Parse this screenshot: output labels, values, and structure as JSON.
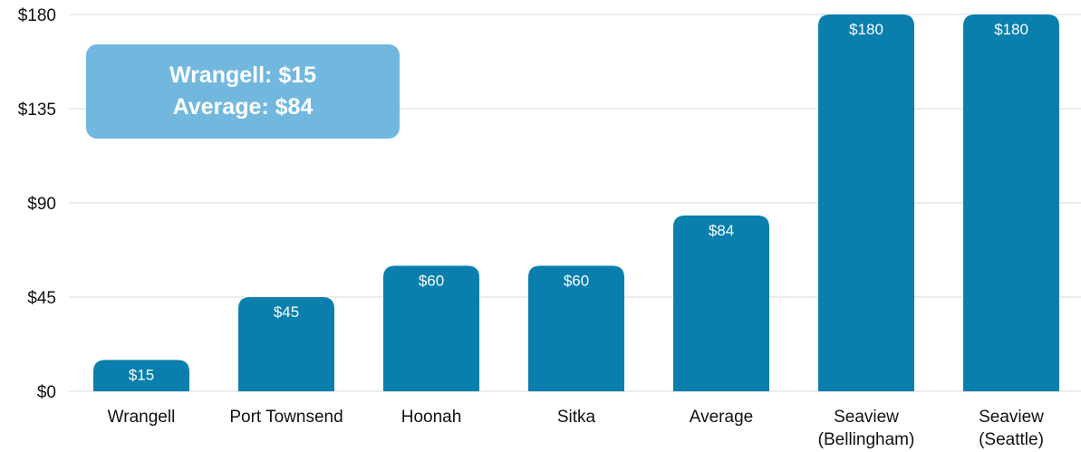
{
  "chart_data": {
    "type": "bar",
    "categories": [
      [
        "Wrangell"
      ],
      [
        "Port Townsend"
      ],
      [
        "Hoonah"
      ],
      [
        "Sitka"
      ],
      [
        "Average"
      ],
      [
        "Seaview",
        "(Bellingham)"
      ],
      [
        "Seaview",
        "(Seattle)"
      ]
    ],
    "values": [
      15,
      45,
      60,
      60,
      84,
      180,
      180
    ],
    "data_labels": [
      "$15",
      "$45",
      "$60",
      "$60",
      "$84",
      "$180",
      "$180"
    ],
    "yticks": [
      0,
      45,
      90,
      135,
      180
    ],
    "ytick_labels": [
      "$0",
      "$45",
      "$90",
      "$135",
      "$180"
    ],
    "ylim": [
      0,
      180
    ],
    "grid": true,
    "colors": {
      "bar": "#0a7fad",
      "grid": "#d9d9d9",
      "callout": "#72b8de"
    }
  },
  "callout": {
    "line1": "Wrangell: $15",
    "line2": "Average: $84"
  }
}
